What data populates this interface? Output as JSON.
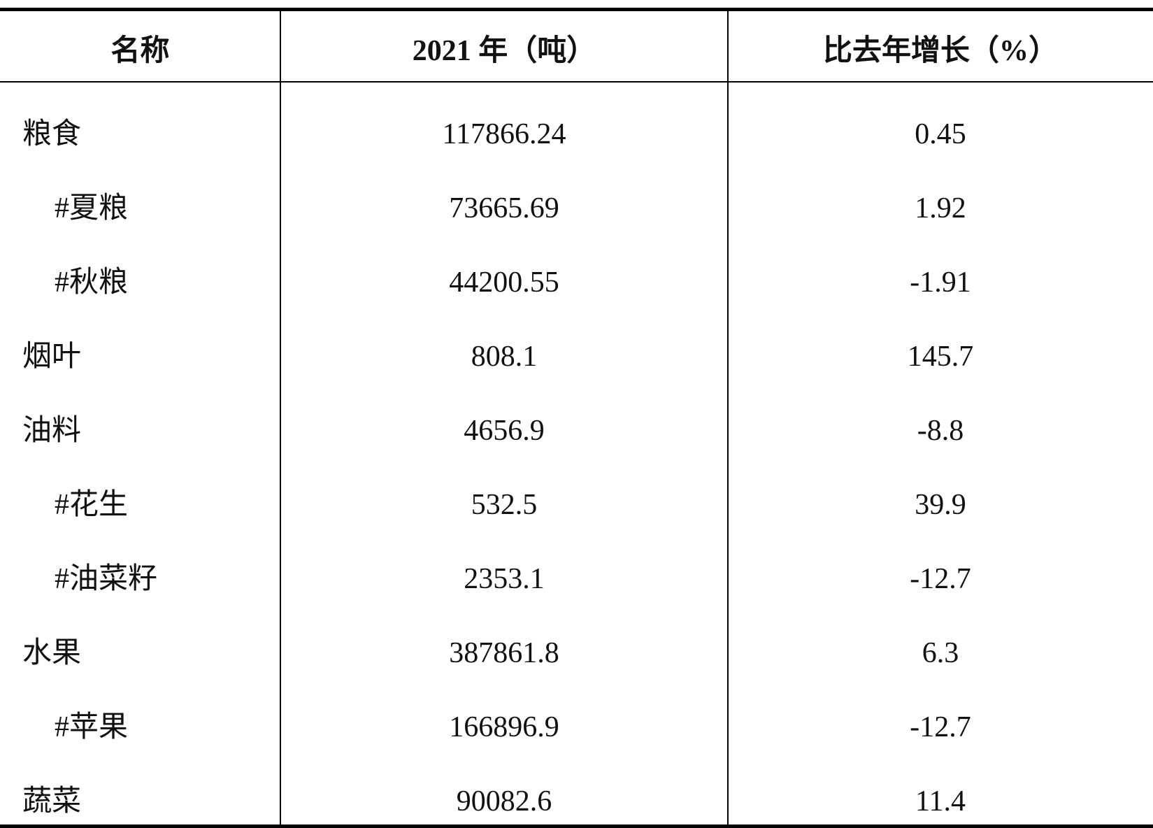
{
  "table": {
    "header": [
      "名称",
      "2021 年（吨）",
      "比去年增长（%）"
    ],
    "rows": [
      [
        "粮食",
        "117866.24",
        "0.45"
      ],
      [
        "#夏粮",
        "73665.69",
        "1.92"
      ],
      [
        "#秋粮",
        "44200.55",
        "-1.91"
      ],
      [
        "烟叶",
        "808.1",
        "145.7"
      ],
      [
        "油料",
        "4656.9",
        "-8.8"
      ],
      [
        "#花生",
        "532.5",
        "39.9"
      ],
      [
        "#油菜籽",
        "2353.1",
        "-12.7"
      ],
      [
        "水果",
        "387861.8",
        "6.3"
      ],
      [
        "#苹果",
        "166896.9",
        "-12.7"
      ],
      [
        "蔬菜",
        "90082.6",
        "11.4"
      ]
    ]
  }
}
